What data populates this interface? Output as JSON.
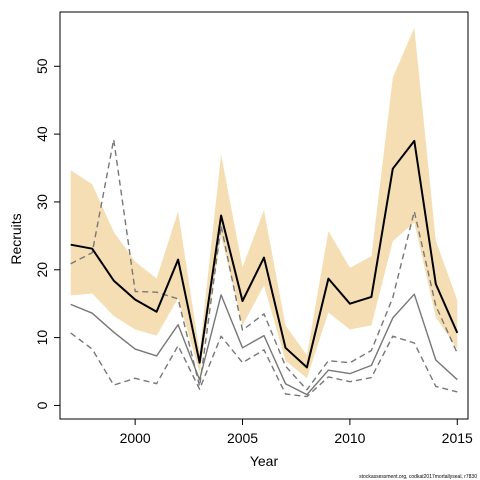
{
  "chart_data": {
    "type": "line",
    "title": "",
    "xlabel": "Year",
    "ylabel": "Recruits",
    "xlim": [
      1996.5,
      2015.5
    ],
    "ylim": [
      -2,
      58
    ],
    "x_ticks": [
      2000,
      2005,
      2010,
      2015
    ],
    "y_ticks": [
      0,
      10,
      20,
      30,
      40,
      50
    ],
    "grid": false,
    "legend": "none",
    "x": [
      1997,
      1998,
      1999,
      2000,
      2001,
      2002,
      2003,
      2004,
      2005,
      2006,
      2007,
      2008,
      2009,
      2010,
      2011,
      2012,
      2013,
      2014,
      2015
    ],
    "series": [
      {
        "role": "band",
        "color": "#f5deb3",
        "lower": [
          16.2,
          16.5,
          13.2,
          11.2,
          10.3,
          15.8,
          4.9,
          25.0,
          11.8,
          17.7,
          6.6,
          4.0,
          13.7,
          11.2,
          11.8,
          24.2,
          27.0,
          13.0,
          8.3
        ],
        "upper": [
          34.7,
          32.6,
          25.6,
          21.2,
          18.7,
          28.6,
          7.9,
          37.0,
          20.4,
          28.8,
          11.8,
          7.4,
          25.7,
          20.3,
          22.0,
          48.3,
          55.7,
          24.3,
          15.5
        ]
      },
      {
        "role": "main-estimate",
        "color": "#000000",
        "values": [
          23.7,
          23.1,
          18.4,
          15.6,
          13.8,
          21.5,
          6.3,
          28.0,
          15.4,
          21.8,
          8.5,
          5.6,
          18.7,
          15.0,
          16.0,
          34.9,
          39.0,
          17.9,
          10.7
        ]
      },
      {
        "role": "grey-estimate",
        "color": "#777777",
        "values": [
          14.9,
          13.6,
          10.8,
          8.3,
          7.3,
          11.9,
          3.8,
          16.3,
          8.5,
          10.3,
          3.2,
          1.6,
          5.2,
          4.7,
          5.9,
          12.9,
          16.4,
          6.7,
          3.8
        ]
      },
      {
        "role": "grey-upper-dashed",
        "color": "#777777",
        "values": [
          20.9,
          22.5,
          39.2,
          16.8,
          16.7,
          15.7,
          2.8,
          26.5,
          11.1,
          13.5,
          5.8,
          2.3,
          6.6,
          6.3,
          8.1,
          15.9,
          28.6,
          14.7,
          7.7
        ]
      },
      {
        "role": "grey-lower-dashed",
        "color": "#777777",
        "values": [
          10.7,
          8.3,
          3.0,
          4.0,
          3.2,
          8.8,
          2.4,
          10.2,
          6.3,
          8.2,
          1.7,
          1.3,
          4.2,
          3.5,
          4.1,
          10.2,
          9.2,
          2.8,
          2.0
        ]
      }
    ],
    "credit": "stockassessment.org, codkat2017mortallyseal, r7830"
  }
}
